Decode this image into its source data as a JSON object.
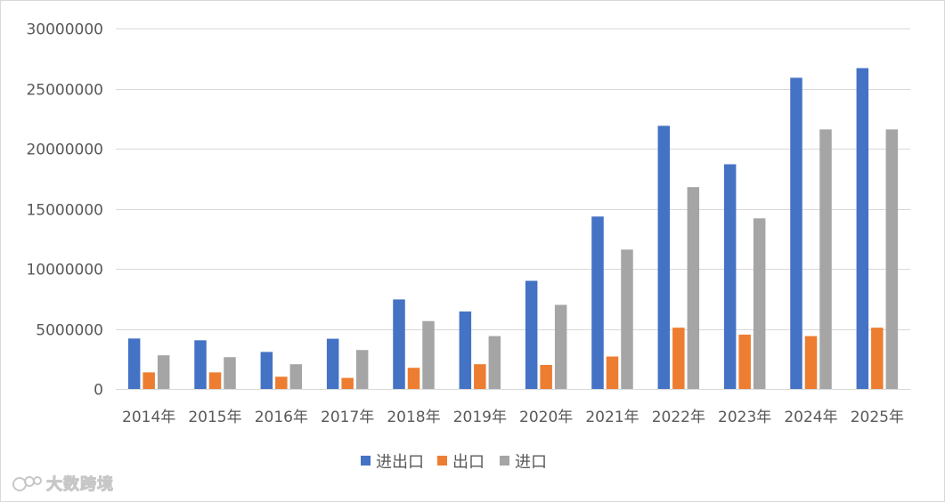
{
  "chart_data": {
    "type": "bar",
    "categories": [
      "2014年",
      "2015年",
      "2016年",
      "2017年",
      "2018年",
      "2019年",
      "2020年",
      "2021年",
      "2022年",
      "2023年",
      "2024年",
      "2025年"
    ],
    "series": [
      {
        "name": "进出口",
        "color": "#4472C4",
        "values": [
          4200000,
          4050000,
          3080000,
          4180000,
          7450000,
          6450000,
          9000000,
          14350000,
          21900000,
          18700000,
          25900000,
          26700000
        ]
      },
      {
        "name": "出口",
        "color": "#ED7D31",
        "values": [
          1380000,
          1380000,
          1020000,
          920000,
          1760000,
          2060000,
          2000000,
          2700000,
          5100000,
          4520000,
          4400000,
          5100000
        ]
      },
      {
        "name": "进口",
        "color": "#A5A5A5",
        "values": [
          2800000,
          2650000,
          2060000,
          3240000,
          5650000,
          4400000,
          7000000,
          11600000,
          16800000,
          14200000,
          21600000,
          21600000
        ]
      }
    ],
    "yticks": [
      "0",
      "5000000",
      "10000000",
      "15000000",
      "20000000",
      "25000000",
      "30000000"
    ],
    "ylim": [
      0,
      30000000
    ],
    "grid": true,
    "legend_position": "bottom"
  },
  "watermark": {
    "text": "大数跨境",
    "icon": "dashuju-logo-icon"
  }
}
